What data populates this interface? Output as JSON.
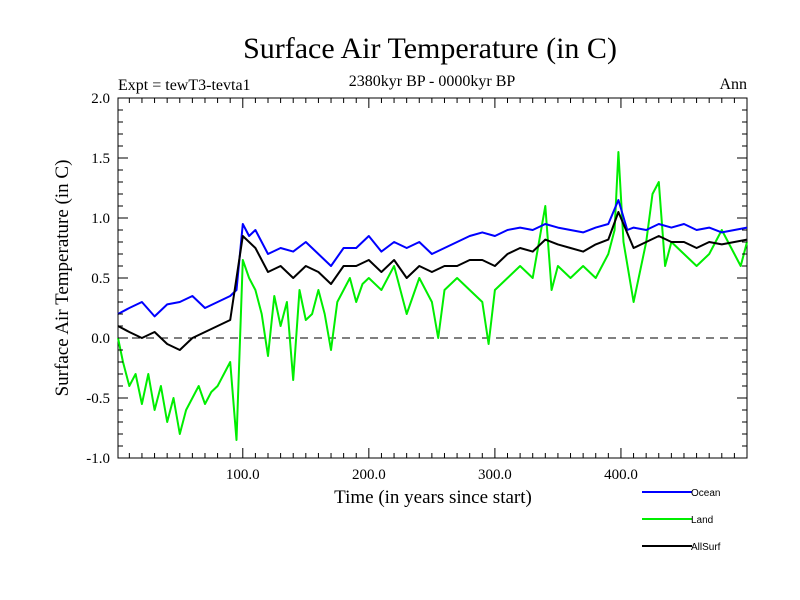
{
  "chart_data": {
    "type": "line",
    "title": "Surface Air Temperature (in C)",
    "subtitle": "2380kyr BP - 0000kyr BP",
    "experiment_label": "Expt = tewT3-tevta1",
    "season_label": "Ann",
    "xlabel": "Time (in years since start)",
    "ylabel": "Surface Air Temperature (in C)",
    "xlim": [
      1,
      500
    ],
    "ylim": [
      -1.0,
      2.0
    ],
    "x_ticks": [
      100,
      200,
      300,
      400
    ],
    "x_tick_labels": [
      "100.0",
      "200.0",
      "300.0",
      "400.0"
    ],
    "y_ticks": [
      -1.0,
      -0.5,
      0.0,
      0.5,
      1.0,
      1.5,
      2.0
    ],
    "y_tick_labels": [
      "-1.0",
      "-0.5",
      "0.0",
      "0.5",
      "1.0",
      "1.5",
      "2.0"
    ],
    "zero_line": "dashed",
    "legend_placement": "bottom-right",
    "series": [
      {
        "name": "Ocean",
        "color": "#0000ff",
        "x": [
          1,
          10,
          20,
          30,
          40,
          50,
          60,
          70,
          80,
          90,
          95,
          100,
          105,
          110,
          120,
          130,
          140,
          150,
          160,
          170,
          180,
          190,
          200,
          210,
          220,
          230,
          240,
          250,
          260,
          270,
          280,
          290,
          300,
          310,
          320,
          330,
          340,
          350,
          360,
          370,
          380,
          390,
          398,
          405,
          410,
          420,
          430,
          440,
          450,
          460,
          470,
          480,
          490,
          500
        ],
        "values": [
          0.2,
          0.25,
          0.3,
          0.18,
          0.28,
          0.3,
          0.35,
          0.25,
          0.3,
          0.35,
          0.4,
          0.95,
          0.85,
          0.9,
          0.7,
          0.75,
          0.72,
          0.8,
          0.7,
          0.6,
          0.75,
          0.75,
          0.85,
          0.72,
          0.8,
          0.75,
          0.8,
          0.7,
          0.75,
          0.8,
          0.85,
          0.88,
          0.85,
          0.9,
          0.92,
          0.9,
          0.95,
          0.92,
          0.9,
          0.88,
          0.92,
          0.95,
          1.15,
          0.9,
          0.92,
          0.9,
          0.95,
          0.92,
          0.95,
          0.9,
          0.92,
          0.88,
          0.9,
          0.92
        ]
      },
      {
        "name": "Land",
        "color": "#00ee00",
        "x": [
          1,
          5,
          10,
          15,
          20,
          25,
          30,
          35,
          40,
          45,
          50,
          55,
          60,
          65,
          70,
          75,
          80,
          85,
          90,
          95,
          100,
          105,
          110,
          115,
          120,
          125,
          130,
          135,
          140,
          145,
          150,
          155,
          160,
          165,
          170,
          175,
          180,
          185,
          190,
          195,
          200,
          210,
          220,
          230,
          240,
          250,
          255,
          260,
          270,
          280,
          290,
          295,
          300,
          310,
          320,
          330,
          340,
          345,
          350,
          360,
          370,
          380,
          390,
          395,
          398,
          402,
          410,
          420,
          425,
          430,
          435,
          440,
          450,
          460,
          470,
          480,
          490,
          495,
          500
        ],
        "values": [
          0.0,
          -0.2,
          -0.4,
          -0.3,
          -0.55,
          -0.3,
          -0.6,
          -0.4,
          -0.7,
          -0.5,
          -0.8,
          -0.6,
          -0.5,
          -0.4,
          -0.55,
          -0.45,
          -0.4,
          -0.3,
          -0.2,
          -0.85,
          0.65,
          0.5,
          0.4,
          0.2,
          -0.15,
          0.35,
          0.1,
          0.3,
          -0.35,
          0.4,
          0.15,
          0.2,
          0.4,
          0.2,
          -0.1,
          0.3,
          0.4,
          0.5,
          0.3,
          0.45,
          0.5,
          0.4,
          0.6,
          0.2,
          0.5,
          0.3,
          0.0,
          0.4,
          0.5,
          0.4,
          0.3,
          -0.05,
          0.4,
          0.5,
          0.6,
          0.5,
          1.1,
          0.4,
          0.6,
          0.5,
          0.6,
          0.5,
          0.7,
          0.9,
          1.55,
          0.8,
          0.3,
          0.8,
          1.2,
          1.3,
          0.6,
          0.8,
          0.7,
          0.6,
          0.7,
          0.9,
          0.7,
          0.6,
          0.8
        ]
      },
      {
        "name": "AllSurf",
        "color": "#000000",
        "x": [
          1,
          10,
          20,
          30,
          40,
          50,
          60,
          70,
          80,
          90,
          100,
          110,
          120,
          130,
          140,
          150,
          160,
          170,
          180,
          190,
          200,
          210,
          220,
          230,
          240,
          250,
          260,
          270,
          280,
          290,
          300,
          310,
          320,
          330,
          340,
          350,
          360,
          370,
          380,
          390,
          398,
          410,
          420,
          430,
          440,
          450,
          460,
          470,
          480,
          490,
          500
        ],
        "values": [
          0.1,
          0.05,
          0.0,
          0.05,
          -0.05,
          -0.1,
          0.0,
          0.05,
          0.1,
          0.15,
          0.85,
          0.75,
          0.55,
          0.6,
          0.5,
          0.6,
          0.55,
          0.45,
          0.6,
          0.6,
          0.65,
          0.55,
          0.65,
          0.5,
          0.6,
          0.55,
          0.6,
          0.6,
          0.65,
          0.65,
          0.6,
          0.7,
          0.75,
          0.72,
          0.82,
          0.78,
          0.75,
          0.72,
          0.78,
          0.82,
          1.05,
          0.75,
          0.8,
          0.85,
          0.8,
          0.8,
          0.75,
          0.8,
          0.78,
          0.8,
          0.82
        ]
      }
    ]
  }
}
